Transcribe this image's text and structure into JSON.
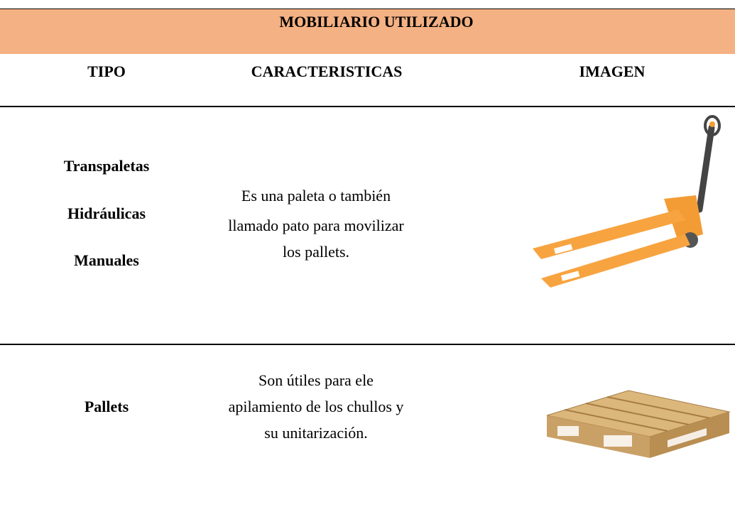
{
  "header": {
    "title": "MOBILIARIO UTILIZADO"
  },
  "table": {
    "columns": [
      "TIPO",
      "CARACTERISTICAS",
      "IMAGEN"
    ],
    "rows": [
      {
        "tipo": [
          "Transpaletas",
          "Hidráulicas",
          "Manuales"
        ],
        "caracteristicas": [
          "Es una paleta o también",
          "llamado pato para movilizar",
          "los pallets."
        ]
      },
      {
        "tipo": [
          "Pallets"
        ],
        "caracteristicas": [
          "Son útiles para ele",
          "apilamiento de los chullos y",
          "su unitarización."
        ]
      }
    ]
  }
}
